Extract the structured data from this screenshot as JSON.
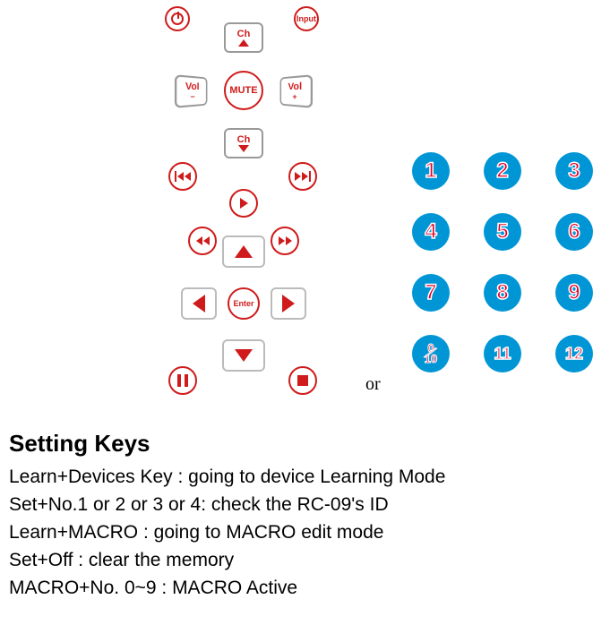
{
  "remote": {
    "input_label": "Input",
    "mute_label": "MUTE",
    "ch_label": "Ch",
    "vol_label": "Vol",
    "vol_minus": "−",
    "vol_plus": "+",
    "enter_label": "Enter"
  },
  "separator": "or",
  "numpad": {
    "keys": [
      "1",
      "2",
      "3",
      "4",
      "5",
      "6",
      "7",
      "8",
      "9",
      "0/10",
      "11",
      "12"
    ],
    "bg_color": "#0096d6",
    "digit_fill": "#e4002b",
    "digit_stroke": "#ffffff"
  },
  "text": {
    "heading": "Setting Keys",
    "lines": [
      "Learn+Devices Key     : going to device Learning Mode",
      "Set+No.1 or 2 or 3 or 4: check the RC-09's ID",
      "Learn+MACRO            : going to MACRO edit mode",
      "Set+Off                        : clear the memory",
      "MACRO+No. 0~9        : MACRO Active"
    ]
  },
  "colors": {
    "accent_red": "#cf1b1b",
    "key_border": "#bbbbbb"
  }
}
